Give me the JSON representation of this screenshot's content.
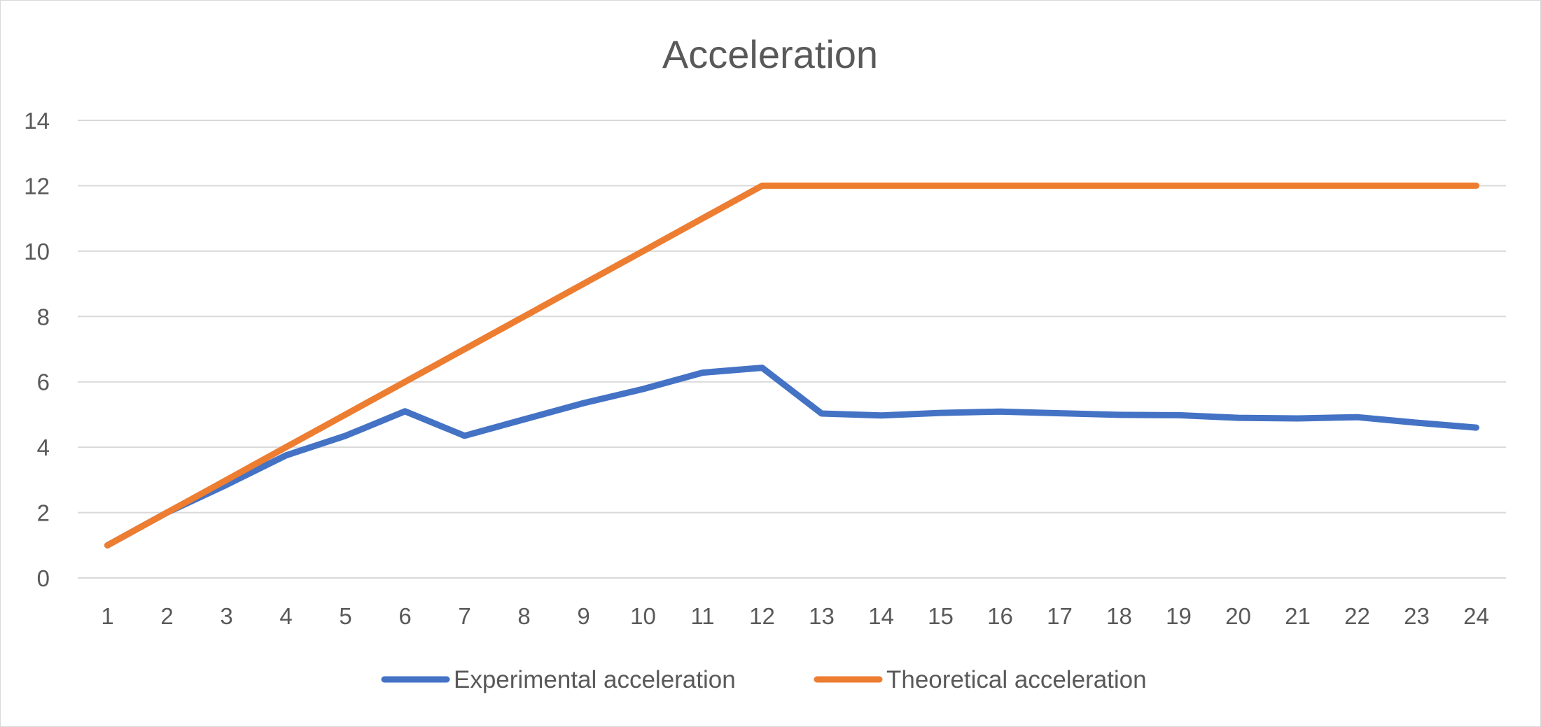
{
  "chart_data": {
    "type": "line",
    "title": "Acceleration",
    "xlabel": "",
    "ylabel": "",
    "categories": [
      "1",
      "2",
      "3",
      "4",
      "5",
      "6",
      "7",
      "8",
      "9",
      "10",
      "11",
      "12",
      "13",
      "14",
      "15",
      "16",
      "17",
      "18",
      "19",
      "20",
      "21",
      "22",
      "23",
      "24"
    ],
    "ylim": [
      0,
      14
    ],
    "yticks": [
      0,
      2,
      4,
      6,
      8,
      10,
      12,
      14
    ],
    "grid": true,
    "legend_position": "bottom",
    "series": [
      {
        "name": "Experimental acceleration",
        "color": "#4472c4",
        "values": [
          1,
          2,
          2.85,
          3.75,
          4.35,
          5.1,
          4.35,
          4.85,
          5.35,
          5.78,
          6.28,
          6.43,
          5.03,
          4.97,
          5.05,
          5.09,
          5.04,
          4.99,
          4.98,
          4.9,
          4.88,
          4.92,
          4.75,
          4.6
        ]
      },
      {
        "name": "Theoretical acceleration",
        "color": "#ed7d31",
        "values": [
          1,
          2,
          3,
          4,
          5,
          6,
          7,
          8,
          9,
          10,
          11,
          12,
          12,
          12,
          12,
          12,
          12,
          12,
          12,
          12,
          12,
          12,
          12,
          12
        ]
      }
    ],
    "gridline_color": "#d9d9d9",
    "text_color": "#595959"
  }
}
